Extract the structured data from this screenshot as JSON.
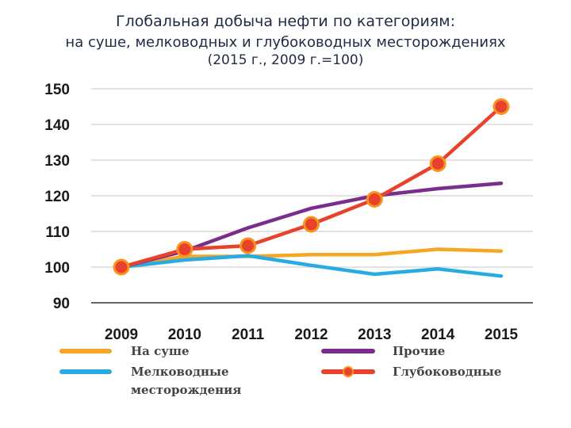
{
  "title_lines": [
    "Глобальная добыча нефти по категориям:",
    "на суше, мелководных и глубоководных месторождениях",
    "(2015 г., 2009 г.=100)"
  ],
  "chart_data": {
    "type": "line",
    "categories": [
      "2009",
      "2010",
      "2011",
      "2012",
      "2013",
      "2014",
      "2015"
    ],
    "ylim": [
      90,
      150
    ],
    "yticks": [
      90,
      100,
      110,
      120,
      130,
      140,
      150
    ],
    "grid": true,
    "series": [
      {
        "key": "onshore",
        "name": "На суше",
        "color": "#f5a623",
        "markers": false,
        "values": [
          100,
          103,
          103,
          103.5,
          103.5,
          105,
          104.5
        ]
      },
      {
        "key": "shallow",
        "name": "Мелководные месторождения",
        "color": "#29abe2",
        "markers": false,
        "values": [
          100,
          102,
          103.2,
          100.5,
          98,
          99.5,
          97.5
        ]
      },
      {
        "key": "other",
        "name": "Прочие",
        "color": "#7b2d8e",
        "markers": false,
        "values": [
          100,
          104.5,
          111,
          116.5,
          120,
          122,
          123.5
        ]
      },
      {
        "key": "deepwater",
        "name": "Глубоководные",
        "color": "#e8412c",
        "markers": true,
        "values": [
          100,
          105,
          106,
          112,
          119,
          129,
          145
        ]
      }
    ],
    "legend": [
      {
        "series": "onshore",
        "lines": [
          "На суше"
        ]
      },
      {
        "series": "other",
        "lines": [
          "Прочие"
        ]
      },
      {
        "series": "shallow",
        "lines": [
          "Мелководные",
          "месторождения"
        ]
      },
      {
        "series": "deepwater",
        "lines": [
          "Глубоководные"
        ]
      }
    ]
  }
}
